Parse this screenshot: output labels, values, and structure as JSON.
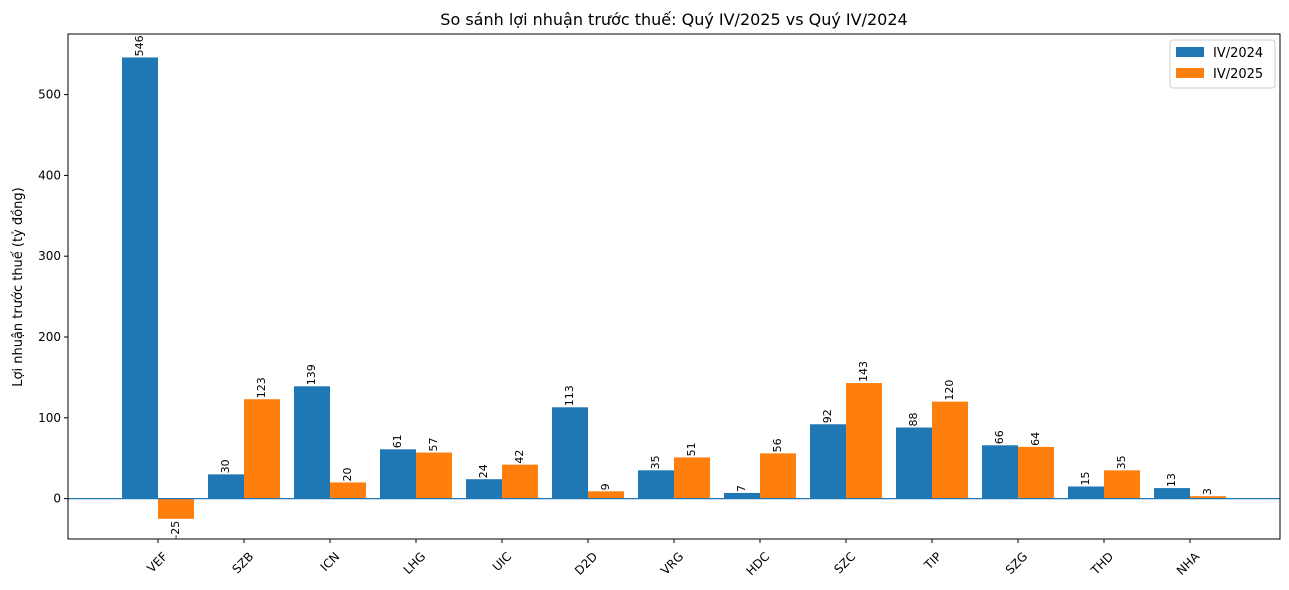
{
  "chart_data": {
    "type": "bar",
    "title": "So sánh lợi nhuận trước thuế: Quý IV/2025 vs Quý IV/2024",
    "xlabel": "",
    "ylabel": "Lợi nhuận trước thuế (tỷ đồng)",
    "categories": [
      "VEF",
      "SZB",
      "ICN",
      "LHG",
      "UIC",
      "D2D",
      "VRG",
      "HDC",
      "SZC",
      "TIP",
      "SZG",
      "THD",
      "NHA"
    ],
    "series": [
      {
        "name": "IV/2024",
        "color": "#1f77b4",
        "values": [
          546,
          30,
          139,
          61,
          24,
          113,
          35,
          7,
          92,
          88,
          66,
          15,
          13
        ]
      },
      {
        "name": "IV/2025",
        "color": "#ff7f0e",
        "values": [
          -25,
          123,
          20,
          57,
          42,
          9,
          51,
          56,
          143,
          120,
          64,
          35,
          3
        ]
      }
    ],
    "ylim": [
      -50,
      575
    ],
    "yticks": [
      0,
      100,
      200,
      300,
      400,
      500
    ],
    "legend_position": "top-right",
    "grid": false,
    "zero_line_color": "#1f77b4"
  }
}
